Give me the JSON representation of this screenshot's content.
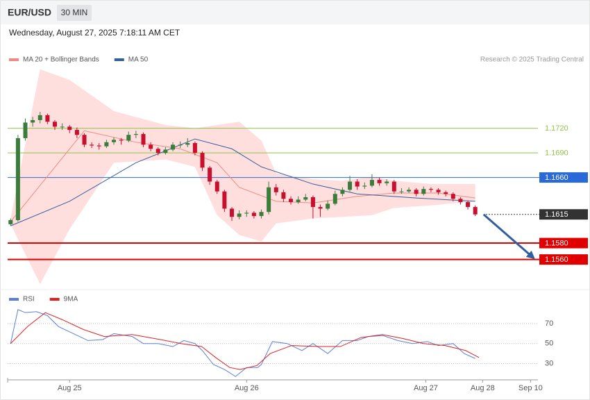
{
  "header": {
    "symbol": "EUR/USD",
    "interval": "30 MIN",
    "timestamp": "Wednesday, August 27, 2025 7:18:11 AM CET"
  },
  "credit": "Research © 2025 Trading Central",
  "chart_data": [
    {
      "type": "candlestick",
      "up_color": "#3a7d3a",
      "down_color": "#c8102e",
      "xlim": [
        -0.4,
        71.5
      ],
      "ylim": [
        1.1525,
        1.1796
      ],
      "x": [
        0,
        1,
        2,
        3,
        4,
        5,
        6,
        7,
        8,
        9,
        10,
        11,
        12,
        13,
        14,
        15,
        16,
        17,
        18,
        19,
        20,
        21,
        22,
        23,
        24,
        25,
        26,
        27,
        28,
        29,
        30,
        31,
        32,
        33,
        34,
        35,
        36,
        37,
        38,
        39,
        40,
        41,
        42,
        43,
        44,
        45,
        46,
        47,
        48,
        49,
        50,
        51,
        52,
        53,
        54,
        55,
        56,
        57,
        58,
        59,
        60,
        61,
        62,
        63
      ],
      "ohlc": [
        [
          1.1603,
          1.161,
          1.1601,
          1.1608
        ],
        [
          1.1608,
          1.1712,
          1.1606,
          1.1708
        ],
        [
          1.1708,
          1.1732,
          1.1705,
          1.1727
        ],
        [
          1.1727,
          1.1734,
          1.1722,
          1.173
        ],
        [
          1.173,
          1.174,
          1.1726,
          1.1736
        ],
        [
          1.1736,
          1.1738,
          1.1725,
          1.1728
        ],
        [
          1.1728,
          1.173,
          1.1718,
          1.1722
        ],
        [
          1.1722,
          1.1726,
          1.1718,
          1.1722
        ],
        [
          1.1722,
          1.1724,
          1.1714,
          1.1718
        ],
        [
          1.1718,
          1.1721,
          1.1708,
          1.1712
        ],
        [
          1.1712,
          1.1714,
          1.1697,
          1.17
        ],
        [
          1.17,
          1.1703,
          1.1696,
          1.1699
        ],
        [
          1.1699,
          1.1702,
          1.1694,
          1.1698
        ],
        [
          1.1698,
          1.1706,
          1.1696,
          1.1703
        ],
        [
          1.1703,
          1.1709,
          1.17,
          1.1706
        ],
        [
          1.1706,
          1.1708,
          1.17,
          1.1705
        ],
        [
          1.1705,
          1.1716,
          1.1703,
          1.1712
        ],
        [
          1.1712,
          1.1717,
          1.1708,
          1.1713
        ],
        [
          1.1713,
          1.1715,
          1.1697,
          1.17
        ],
        [
          1.17,
          1.1703,
          1.1692,
          1.1695
        ],
        [
          1.1695,
          1.1697,
          1.1687,
          1.169
        ],
        [
          1.169,
          1.1697,
          1.1688,
          1.1694
        ],
        [
          1.1694,
          1.1703,
          1.1692,
          1.17
        ],
        [
          1.17,
          1.1704,
          1.1696,
          1.17
        ],
        [
          1.17,
          1.1708,
          1.1697,
          1.1702
        ],
        [
          1.1702,
          1.1704,
          1.1687,
          1.169
        ],
        [
          1.169,
          1.1692,
          1.1668,
          1.1672
        ],
        [
          1.1672,
          1.1674,
          1.1651,
          1.1655
        ],
        [
          1.1655,
          1.1657,
          1.164,
          1.1643
        ],
        [
          1.1643,
          1.1645,
          1.1618,
          1.1622
        ],
        [
          1.1622,
          1.1624,
          1.1607,
          1.1612
        ],
        [
          1.1612,
          1.162,
          1.1609,
          1.1616
        ],
        [
          1.1616,
          1.162,
          1.1612,
          1.1617
        ],
        [
          1.1617,
          1.1619,
          1.161,
          1.1613
        ],
        [
          1.1613,
          1.1621,
          1.161,
          1.1618
        ],
        [
          1.1618,
          1.1655,
          1.1615,
          1.1648
        ],
        [
          1.1648,
          1.1652,
          1.1638,
          1.1642
        ],
        [
          1.1642,
          1.1645,
          1.163,
          1.1634
        ],
        [
          1.1634,
          1.1637,
          1.1627,
          1.163
        ],
        [
          1.163,
          1.1637,
          1.1628,
          1.1633
        ],
        [
          1.1633,
          1.164,
          1.1631,
          1.1636
        ],
        [
          1.1636,
          1.1638,
          1.161,
          1.1624
        ],
        [
          1.1624,
          1.1627,
          1.1612,
          1.1622
        ],
        [
          1.1622,
          1.1632,
          1.162,
          1.1628
        ],
        [
          1.1628,
          1.1644,
          1.1626,
          1.164
        ],
        [
          1.164,
          1.1648,
          1.1637,
          1.1645
        ],
        [
          1.1645,
          1.1662,
          1.1643,
          1.1655
        ],
        [
          1.1655,
          1.1658,
          1.1645,
          1.1649
        ],
        [
          1.1649,
          1.1654,
          1.1646,
          1.165
        ],
        [
          1.165,
          1.1664,
          1.1648,
          1.1657
        ],
        [
          1.1657,
          1.166,
          1.165,
          1.1653
        ],
        [
          1.1653,
          1.1658,
          1.165,
          1.1655
        ],
        [
          1.1655,
          1.1657,
          1.164,
          1.1643
        ],
        [
          1.1643,
          1.1647,
          1.164,
          1.1643
        ],
        [
          1.1643,
          1.1648,
          1.1641,
          1.1645
        ],
        [
          1.1645,
          1.1647,
          1.1637,
          1.164
        ],
        [
          1.164,
          1.1649,
          1.1638,
          1.1646
        ],
        [
          1.1646,
          1.1648,
          1.1642,
          1.1645
        ],
        [
          1.1645,
          1.1647,
          1.1639,
          1.1642
        ],
        [
          1.1642,
          1.1644,
          1.1637,
          1.164
        ],
        [
          1.164,
          1.1642,
          1.1631,
          1.1634
        ],
        [
          1.1634,
          1.1636,
          1.1627,
          1.163
        ],
        [
          1.163,
          1.1632,
          1.1621,
          1.1624
        ],
        [
          1.1624,
          1.1626,
          1.1613,
          1.1615
        ]
      ],
      "bands": {
        "color": "#ffdede",
        "x": [
          0,
          4,
          8,
          14,
          21,
          25,
          28,
          31,
          34,
          36,
          41,
          45,
          49,
          52,
          57,
          63
        ],
        "upper": [
          1.161,
          1.1792,
          1.1779,
          1.1741,
          1.1724,
          1.172,
          1.1724,
          1.1728,
          1.1705,
          1.1665,
          1.1658,
          1.1656,
          1.1661,
          1.1656,
          1.1652,
          1.1652
        ],
        "lower": [
          1.1603,
          1.153,
          1.1597,
          1.1678,
          1.1682,
          1.1673,
          1.1614,
          1.159,
          1.1582,
          1.1604,
          1.161,
          1.1612,
          1.1614,
          1.1623,
          1.1626,
          1.1631
        ]
      },
      "series": [
        {
          "name": "MA 20 + Bollinger Bands",
          "color": "#f08a80",
          "x": [
            0,
            10,
            17,
            23,
            28,
            31,
            36,
            41,
            47,
            52,
            58,
            63
          ],
          "values": [
            1.1606,
            1.1717,
            1.1703,
            1.1695,
            1.1678,
            1.1648,
            1.1631,
            1.1629,
            1.1637,
            1.1641,
            1.1641,
            1.1635
          ]
        },
        {
          "name": "MA 50",
          "color": "#34609c",
          "x": [
            0,
            8,
            17,
            25,
            30,
            34,
            41,
            47,
            55,
            63
          ],
          "values": [
            1.1601,
            1.1631,
            1.1678,
            1.1707,
            1.1695,
            1.1673,
            1.1652,
            1.164,
            1.1635,
            1.1631
          ]
        }
      ],
      "levels": [
        {
          "value": 1.172,
          "label": "1.1720",
          "color": "#8fc34a",
          "box": false,
          "width": 1,
          "dashed": false
        },
        {
          "value": 1.169,
          "label": "1.1690",
          "color": "#8fc34a",
          "box": false,
          "width": 1,
          "dashed": false
        },
        {
          "value": 1.166,
          "label": "1.1660",
          "color": "#2a6ad8",
          "box": true,
          "width": 1,
          "dashed": false
        },
        {
          "value": 1.1615,
          "label": "1.1615",
          "color": "#333333",
          "box": true,
          "width": 1,
          "dashed": true
        },
        {
          "value": 1.158,
          "label": "1.1580",
          "color": "#e00000",
          "box": true,
          "width": 2,
          "dashed": false
        },
        {
          "value": 1.156,
          "label": "1.1560",
          "color": "#e00000",
          "box": true,
          "width": 2,
          "dashed": false
        }
      ]
    },
    {
      "type": "line",
      "xlim": [
        -0.4,
        71.5
      ],
      "ylim": [
        15,
        102
      ],
      "yticks": [
        30,
        50,
        70
      ],
      "xticks": [
        {
          "value": 8,
          "label": "Aug 25"
        },
        {
          "value": 32,
          "label": "Aug 26"
        },
        {
          "value": 56.3,
          "label": "Aug 27"
        },
        {
          "value": 64,
          "label": "Aug 28"
        },
        {
          "value": 70.5,
          "label": "Sep 10"
        }
      ],
      "series": [
        {
          "name": "RSI",
          "color": "#5b7fd6",
          "x": [
            0,
            1,
            2,
            3.5,
            5,
            6.5,
            8.5,
            10.5,
            12.5,
            14,
            16.5,
            18,
            20,
            22,
            23.5,
            25,
            26,
            27.5,
            29,
            30.5,
            32,
            33.5,
            34,
            35.5,
            37.5,
            39.5,
            41,
            43,
            45,
            47,
            48.5,
            50.5,
            52.5,
            54.5,
            56.5,
            58,
            60,
            61.5,
            63
          ],
          "values": [
            50,
            84,
            81,
            82,
            78,
            67,
            60,
            53,
            54,
            60,
            57,
            50,
            50,
            47,
            53,
            50,
            43,
            29,
            24,
            17,
            26,
            26,
            29,
            52,
            50,
            43,
            50,
            40,
            53,
            53,
            57,
            58,
            53,
            50,
            52,
            48,
            50,
            40,
            35
          ]
        },
        {
          "name": "9MA",
          "color": "#e02020",
          "x": [
            0,
            2.3,
            4.7,
            7,
            9.9,
            12.7,
            16.5,
            20.3,
            23.1,
            25.9,
            27.8,
            29.7,
            31.1,
            33.4,
            35.2,
            38.1,
            41.9,
            44.7,
            47.5,
            50.4,
            53.2,
            56,
            58.9,
            61.7,
            63.5
          ],
          "values": [
            50,
            67,
            81,
            74,
            64,
            57,
            59,
            54,
            50,
            47,
            36,
            26,
            24,
            28,
            40,
            48,
            47,
            47,
            56,
            59,
            55,
            50,
            48,
            43,
            36
          ]
        }
      ]
    }
  ]
}
